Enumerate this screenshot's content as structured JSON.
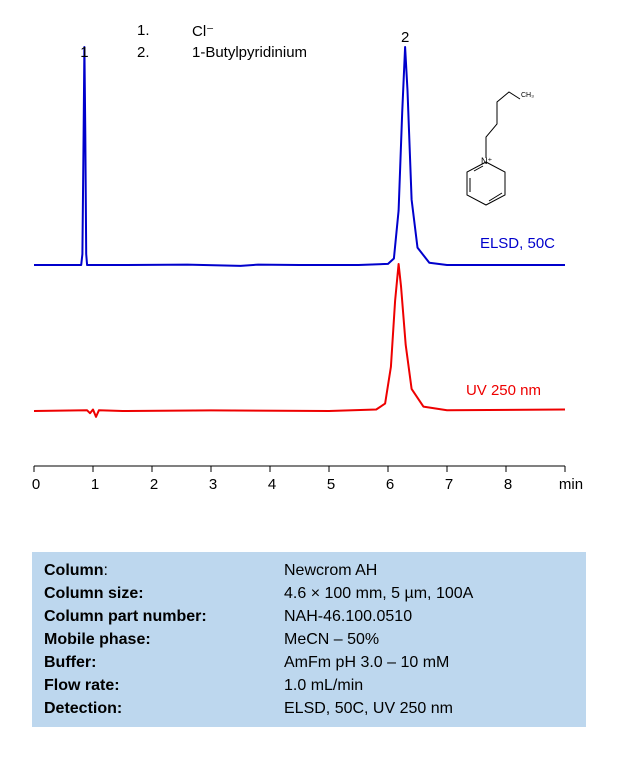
{
  "legend": [
    {
      "num": "1.",
      "name": "Cl⁻"
    },
    {
      "num": "2.",
      "name": "1-Butylpyridinium"
    }
  ],
  "chart_data": {
    "type": "line",
    "x_unit": "min",
    "xlim": [
      0,
      9
    ],
    "x_ticks": [
      "0",
      "1",
      "2",
      "3",
      "4",
      "5",
      "6",
      "7",
      "8",
      "min"
    ],
    "series": [
      {
        "name": "ELSD, 50C",
        "color": "#0000cc",
        "points": [
          [
            0,
            0
          ],
          [
            0.8,
            0
          ],
          [
            0.82,
            0.05
          ],
          [
            0.84,
            0.6
          ],
          [
            0.855,
            1.0
          ],
          [
            0.87,
            0.6
          ],
          [
            0.885,
            0.05
          ],
          [
            0.9,
            0
          ],
          [
            1.5,
            0
          ],
          [
            2.6,
            0.002
          ],
          [
            3.5,
            -0.004
          ],
          [
            3.8,
            0.002
          ],
          [
            4.5,
            0
          ],
          [
            5.5,
            0
          ],
          [
            6.0,
            0.005
          ],
          [
            6.1,
            0.03
          ],
          [
            6.18,
            0.25
          ],
          [
            6.24,
            0.7
          ],
          [
            6.29,
            1.0
          ],
          [
            6.33,
            0.8
          ],
          [
            6.4,
            0.3
          ],
          [
            6.5,
            0.08
          ],
          [
            6.7,
            0.01
          ],
          [
            7.0,
            0
          ],
          [
            9,
            0
          ]
        ]
      },
      {
        "name": "UV 250 nm",
        "color": "#ee0000",
        "points": [
          [
            0,
            0
          ],
          [
            0.9,
            0.005
          ],
          [
            0.95,
            -0.015
          ],
          [
            1.0,
            0.01
          ],
          [
            1.05,
            -0.04
          ],
          [
            1.1,
            0.005
          ],
          [
            1.5,
            0
          ],
          [
            3.0,
            0.004
          ],
          [
            5.0,
            0
          ],
          [
            5.8,
            0.01
          ],
          [
            5.95,
            0.05
          ],
          [
            6.05,
            0.3
          ],
          [
            6.12,
            0.75
          ],
          [
            6.18,
            1.0
          ],
          [
            6.22,
            0.85
          ],
          [
            6.3,
            0.45
          ],
          [
            6.4,
            0.15
          ],
          [
            6.6,
            0.03
          ],
          [
            7.0,
            0.005
          ],
          [
            9,
            0.01
          ]
        ]
      }
    ],
    "peak_labels": [
      {
        "label": "1",
        "x": 0.855
      },
      {
        "label": "2",
        "x": 6.29
      }
    ]
  },
  "structure": {
    "ch3_label": "CH₃",
    "n_label": "N⁺"
  },
  "info": [
    {
      "label": "Column",
      "suffix": ":",
      "value": "Newcrom AH"
    },
    {
      "label": "Column size:",
      "suffix": "",
      "value": "4.6 × 100 mm, 5 µm, 100A"
    },
    {
      "label": "Column part number:",
      "suffix": "",
      "value": "NAH-46.100.0510"
    },
    {
      "label": "Mobile phase:",
      "suffix": "",
      "value": "MeCN – 50%"
    },
    {
      "label": "Buffer:",
      "suffix": "",
      "value": "AmFm pH 3.0 – 10 mM"
    },
    {
      "label": "Flow rate:",
      "suffix": "",
      "value": "1.0 mL/min"
    },
    {
      "label": "Detection:",
      "suffix": "",
      "value": "ELSD, 50C, UV 250 nm"
    }
  ]
}
